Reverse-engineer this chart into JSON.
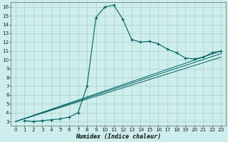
{
  "xlabel": "Humidex (Indice chaleur)",
  "bg_color": "#cdeeed",
  "grid_color": "#b0d4d0",
  "line_color": "#006060",
  "xlim": [
    -0.5,
    23.5
  ],
  "ylim": [
    2.5,
    16.5
  ],
  "xticks": [
    0,
    1,
    2,
    3,
    4,
    5,
    6,
    7,
    8,
    9,
    10,
    11,
    12,
    13,
    14,
    15,
    16,
    17,
    18,
    19,
    20,
    21,
    22,
    23
  ],
  "yticks": [
    3,
    4,
    5,
    6,
    7,
    8,
    9,
    10,
    11,
    12,
    13,
    14,
    15,
    16
  ],
  "main_x": [
    1,
    2,
    3,
    4,
    5,
    6,
    7,
    8,
    9,
    10,
    11,
    12,
    13,
    14,
    15,
    16,
    17,
    18,
    19,
    20,
    21,
    22,
    23
  ],
  "main_y": [
    3.1,
    3.0,
    3.1,
    3.2,
    3.3,
    3.5,
    4.0,
    7.0,
    14.8,
    16.0,
    16.2,
    14.6,
    12.3,
    12.0,
    12.1,
    11.8,
    11.2,
    10.8,
    10.2,
    10.1,
    10.3,
    10.8,
    11.0
  ],
  "line2_x": [
    0,
    23
  ],
  "line2_y": [
    3.0,
    10.3
  ],
  "line3_x": [
    0,
    23
  ],
  "line3_y": [
    3.0,
    10.7
  ],
  "line4_x": [
    0,
    23
  ],
  "line4_y": [
    3.0,
    11.0
  ],
  "xlabel_fontsize": 6.0,
  "tick_fontsize": 5.2
}
